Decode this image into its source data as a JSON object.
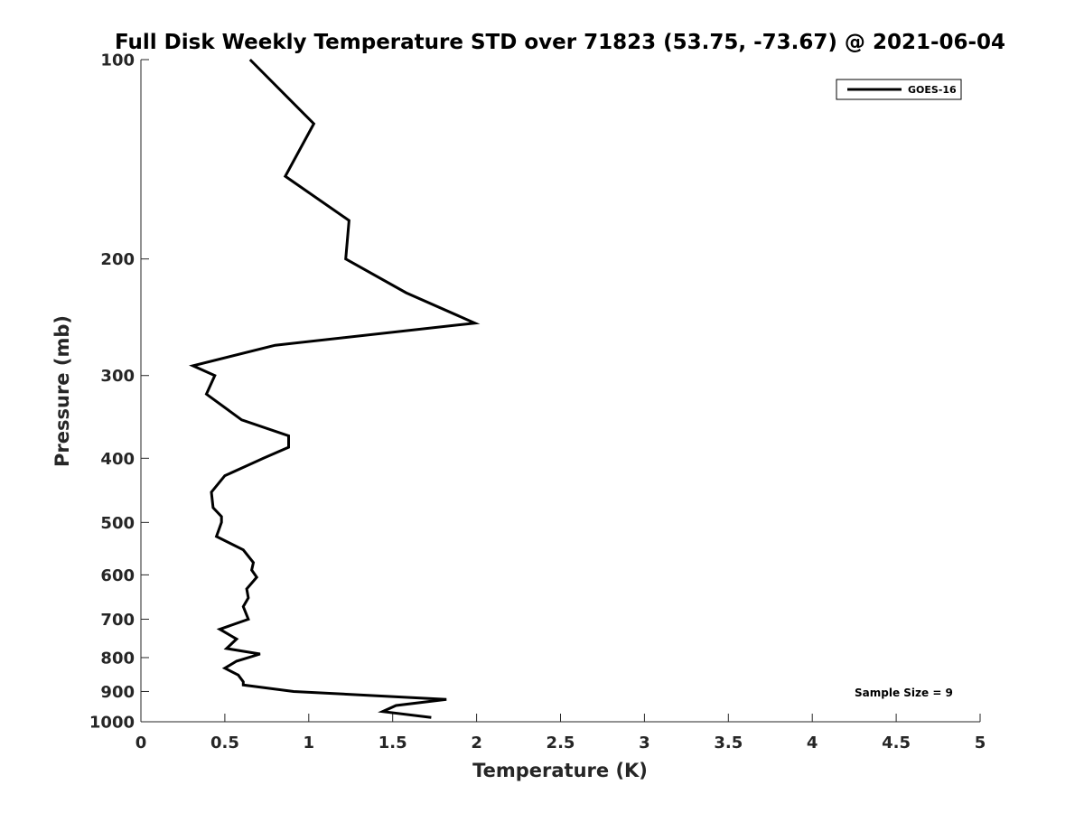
{
  "chart_data": {
    "type": "line",
    "title": "Full Disk Weekly Temperature STD over 71823 (53.75, -73.67) @ 2021-06-04",
    "xlabel": "Temperature (K)",
    "ylabel": "Pressure (mb)",
    "xlim": [
      0,
      5
    ],
    "ylim": [
      100,
      1000
    ],
    "yscale": "log",
    "yreversed": true,
    "grid": false,
    "xticks": [
      0,
      0.5,
      1,
      1.5,
      2,
      2.5,
      3,
      3.5,
      4,
      4.5,
      5
    ],
    "xtick_labels": [
      "0",
      "0.5",
      "1",
      "1.5",
      "2",
      "2.5",
      "3",
      "3.5",
      "4",
      "4.5",
      "5"
    ],
    "yticks": [
      100,
      200,
      300,
      400,
      500,
      600,
      700,
      800,
      900,
      1000
    ],
    "ytick_labels": [
      "100",
      "200",
      "300",
      "400",
      "500",
      "600",
      "700",
      "800",
      "900",
      "1000"
    ],
    "legend": {
      "position": "top-right",
      "entries": [
        "GOES-16"
      ]
    },
    "annotation": "Sample Size = 9",
    "series": [
      {
        "name": "GOES-16",
        "color": "#000000",
        "points": [
          [
            0.65,
            100
          ],
          [
            1.03,
            125
          ],
          [
            0.86,
            150
          ],
          [
            1.24,
            175
          ],
          [
            1.22,
            200
          ],
          [
            1.58,
            225
          ],
          [
            1.99,
            250
          ],
          [
            0.8,
            270
          ],
          [
            0.31,
            290
          ],
          [
            0.44,
            300
          ],
          [
            0.39,
            320
          ],
          [
            0.6,
            350
          ],
          [
            0.88,
            370
          ],
          [
            0.88,
            385
          ],
          [
            0.73,
            400
          ],
          [
            0.5,
            425
          ],
          [
            0.42,
            450
          ],
          [
            0.43,
            475
          ],
          [
            0.48,
            490
          ],
          [
            0.48,
            500
          ],
          [
            0.45,
            525
          ],
          [
            0.61,
            550
          ],
          [
            0.67,
            575
          ],
          [
            0.66,
            590
          ],
          [
            0.69,
            605
          ],
          [
            0.63,
            630
          ],
          [
            0.64,
            650
          ],
          [
            0.61,
            670
          ],
          [
            0.64,
            700
          ],
          [
            0.47,
            725
          ],
          [
            0.57,
            750
          ],
          [
            0.51,
            775
          ],
          [
            0.71,
            790
          ],
          [
            0.57,
            810
          ],
          [
            0.5,
            830
          ],
          [
            0.58,
            850
          ],
          [
            0.61,
            870
          ],
          [
            0.61,
            880
          ],
          [
            0.91,
            900
          ],
          [
            1.82,
            925
          ],
          [
            1.52,
            945
          ],
          [
            1.44,
            965
          ],
          [
            1.73,
            985
          ]
        ]
      }
    ]
  }
}
